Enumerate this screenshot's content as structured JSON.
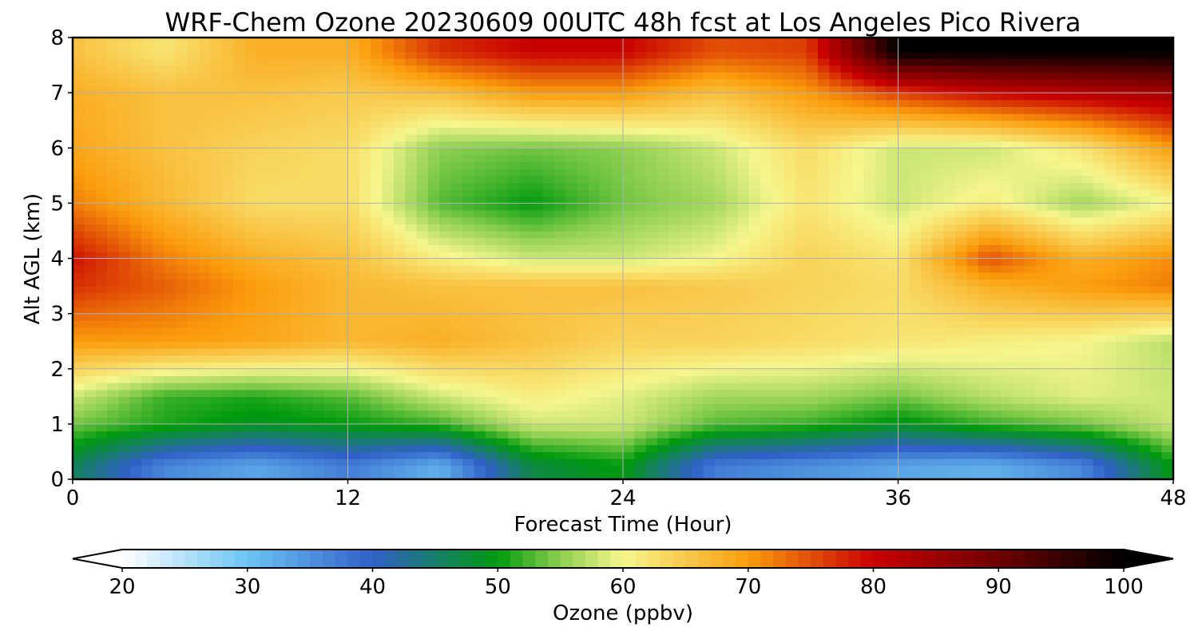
{
  "chart_data": {
    "type": "heatmap",
    "title": "WRF-Chem Ozone  20230609 00UTC 48h fcst at Los Angeles Pico Rivera",
    "xlabel": "Forecast Time (Hour)",
    "ylabel": "Alt AGL (km)",
    "xlim": [
      0,
      48
    ],
    "ylim": [
      0,
      8
    ],
    "x_ticks": [
      0,
      12,
      24,
      36,
      48
    ],
    "y_ticks": [
      0,
      1,
      2,
      3,
      4,
      5,
      6,
      7,
      8
    ],
    "grid": true,
    "x": [
      0,
      4,
      8,
      12,
      16,
      20,
      24,
      28,
      32,
      36,
      40,
      44,
      48
    ],
    "y": [
      0.25,
      1.0,
      1.5,
      2.5,
      3.5,
      4.0,
      5.0,
      6.0,
      7.0,
      7.75
    ],
    "z": [
      [
        46,
        36,
        33,
        37,
        32,
        47,
        50,
        37,
        35,
        33,
        32,
        36,
        50
      ],
      [
        54,
        51,
        49,
        50,
        52,
        58,
        58,
        53,
        52,
        49,
        52,
        54,
        58
      ],
      [
        58,
        52,
        51,
        53,
        58,
        61,
        59,
        56,
        56,
        54,
        57,
        59,
        58
      ],
      [
        70,
        70,
        69,
        67,
        68,
        66,
        64,
        64,
        63,
        62,
        61,
        60,
        57
      ],
      [
        77,
        74,
        70,
        67,
        66,
        66,
        66,
        65,
        64,
        63,
        68,
        70,
        72
      ],
      [
        79,
        72,
        68,
        66,
        61,
        58,
        58,
        60,
        64,
        62,
        75,
        68,
        71
      ],
      [
        72,
        67,
        63,
        63,
        53,
        50,
        54,
        56,
        62,
        58,
        61,
        56,
        60
      ],
      [
        69,
        66,
        64,
        63,
        55,
        54,
        55,
        58,
        63,
        58,
        58,
        62,
        70
      ],
      [
        68,
        66,
        66,
        65,
        66,
        70,
        70,
        66,
        70,
        76,
        80,
        82,
        84
      ],
      [
        66,
        62,
        68,
        68,
        77,
        80,
        80,
        75,
        76,
        100,
        100,
        100,
        100
      ]
    ],
    "colorbar": {
      "label": "Ozone  (ppbv)",
      "min": 20,
      "max": 100,
      "ticks": [
        20,
        30,
        40,
        50,
        60,
        70,
        80,
        90,
        100
      ],
      "extend": "both",
      "stops": [
        {
          "v": 20,
          "c": "#ffffff"
        },
        {
          "v": 30,
          "c": "#6cc4f4"
        },
        {
          "v": 40,
          "c": "#3060c8"
        },
        {
          "v": 50,
          "c": "#009a0e"
        },
        {
          "v": 55,
          "c": "#8ecf50"
        },
        {
          "v": 60,
          "c": "#f6f68c"
        },
        {
          "v": 70,
          "c": "#fb9d0c"
        },
        {
          "v": 80,
          "c": "#c80000"
        },
        {
          "v": 90,
          "c": "#6e0000"
        },
        {
          "v": 100,
          "c": "#000000"
        }
      ]
    }
  }
}
